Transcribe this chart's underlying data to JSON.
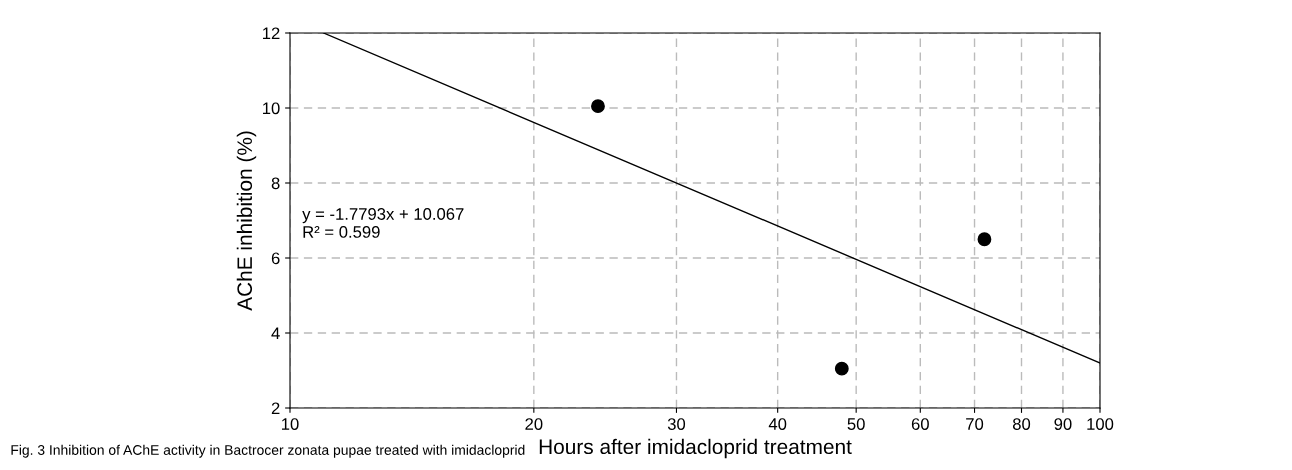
{
  "chart_data": {
    "type": "scatter",
    "xlabel": "Hours after imidacloprid treatment",
    "ylabel": "AChE inhibition (%)",
    "x": [
      24,
      48,
      72
    ],
    "series": [
      {
        "color": "#000000",
        "values": [
          10.05,
          3.05,
          6.5
        ],
        "marker": "circle"
      },
      {
        "type": "line",
        "color": "#000000",
        "x": [
          11,
          100
        ],
        "values": [
          12,
          3.2
        ],
        "marker": "none",
        "line_style": "solid"
      }
    ],
    "log": "x",
    "xlim": [
      10,
      100
    ],
    "xticks": [
      10,
      20,
      30,
      40,
      50,
      60,
      70,
      80,
      90,
      100
    ],
    "ylim": [
      2,
      12
    ],
    "yticks": [
      2,
      4,
      6,
      8,
      10,
      12
    ],
    "grid": true,
    "annotations": [
      "y = -1.7793x + 10.067\nR² = 0.599",
      "Fig. 3 Inhibition of AChE activity in Bactrocer zonata pupae treated with imidacloprid"
    ]
  }
}
